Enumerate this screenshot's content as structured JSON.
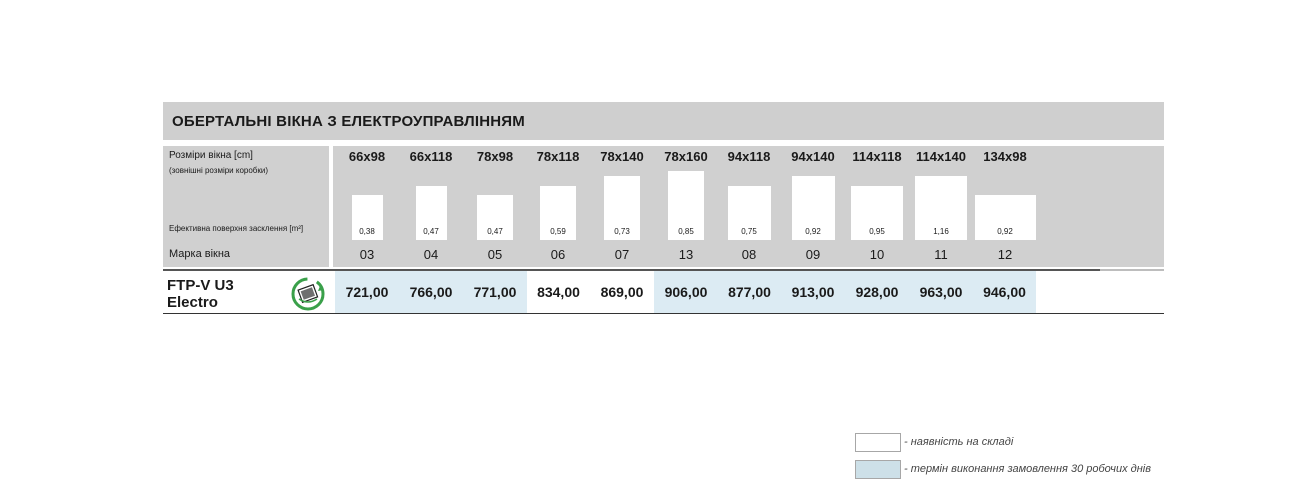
{
  "title": "ОБЕРТАЛЬНІ ВІКНА З ЕЛЕКТРОУПРАВЛІННЯМ",
  "labels": {
    "size": "Розміри вікна [cm]",
    "outer": "(зовнішні розміри коробки)",
    "area": "Ефективна поверхня засклення [m²]",
    "mark": "Марка вікна"
  },
  "product": {
    "name_line1": "FTP-V U3",
    "name_line2": "Electro",
    "icon": "wireless-control-icon"
  },
  "columns": [
    {
      "size": "66x98",
      "area": "0,38",
      "mark": "03",
      "price": "721,00",
      "availability": "order"
    },
    {
      "size": "66x118",
      "area": "0,47",
      "mark": "04",
      "price": "766,00",
      "availability": "order"
    },
    {
      "size": "78x98",
      "area": "0,47",
      "mark": "05",
      "price": "771,00",
      "availability": "order"
    },
    {
      "size": "78x118",
      "area": "0,59",
      "mark": "06",
      "price": "834,00",
      "availability": "stock"
    },
    {
      "size": "78x140",
      "area": "0,73",
      "mark": "07",
      "price": "869,00",
      "availability": "stock"
    },
    {
      "size": "78x160",
      "area": "0,85",
      "mark": "13",
      "price": "906,00",
      "availability": "order"
    },
    {
      "size": "94x118",
      "area": "0,75",
      "mark": "08",
      "price": "877,00",
      "availability": "order"
    },
    {
      "size": "94x140",
      "area": "0,92",
      "mark": "09",
      "price": "913,00",
      "availability": "order"
    },
    {
      "size": "114x118",
      "area": "0,95",
      "mark": "10",
      "price": "928,00",
      "availability": "order"
    },
    {
      "size": "114x140",
      "area": "1,16",
      "mark": "11",
      "price": "963,00",
      "availability": "order"
    },
    {
      "size": "134x98",
      "area": "0,92",
      "mark": "12",
      "price": "946,00",
      "availability": "order"
    }
  ],
  "legend": {
    "stock": "- наявність на складі",
    "order": "- термін виконання замовлення 30 робочих днів"
  },
  "colors": {
    "header_gray": "#cfcfcf",
    "order_blue": "#dcebf3",
    "legend_blue": "#cde0e8",
    "icon_green": "#3aa04a"
  }
}
